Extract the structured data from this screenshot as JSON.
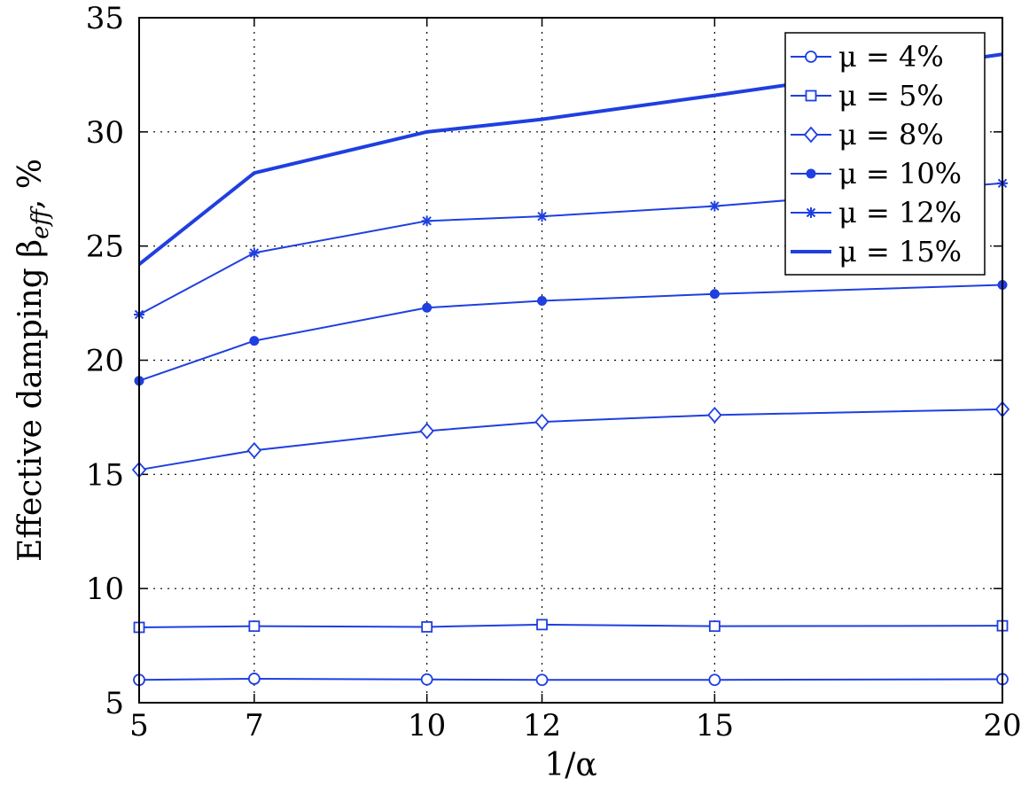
{
  "chart_data": {
    "type": "line",
    "x_tick_labels": [
      "5",
      "7",
      "10",
      "12",
      "15",
      "20"
    ],
    "y_tick_labels": [
      "5",
      "10",
      "15",
      "20",
      "25",
      "30",
      "35"
    ],
    "x": [
      5,
      7,
      10,
      12,
      15,
      20
    ],
    "xlabel": "1/α",
    "ylabel": "Effective damping β",
    "ylabel_subscript": "eff",
    "ylabel_suffix": ", %",
    "xlim": [
      5,
      20
    ],
    "ylim": [
      5,
      35
    ],
    "x_ticks": [
      5,
      7,
      10,
      12,
      15,
      20
    ],
    "y_ticks": [
      5,
      10,
      15,
      20,
      25,
      30,
      35
    ],
    "grid": true,
    "legend_position": "top-right",
    "series_color": "#1f3fe0",
    "series": [
      {
        "name": "μ = 4%",
        "marker": "circle",
        "values": [
          6.0,
          6.05,
          6.02,
          6.0,
          6.0,
          6.03
        ]
      },
      {
        "name": "μ = 5%",
        "marker": "square",
        "values": [
          8.3,
          8.35,
          8.32,
          8.42,
          8.35,
          8.37
        ]
      },
      {
        "name": "μ = 8%",
        "marker": "diamond",
        "values": [
          15.2,
          16.05,
          16.9,
          17.3,
          17.6,
          17.85
        ]
      },
      {
        "name": "μ = 10%",
        "marker": "dot",
        "values": [
          19.1,
          20.85,
          22.3,
          22.6,
          22.9,
          23.3
        ]
      },
      {
        "name": "μ = 12%",
        "marker": "star",
        "values": [
          22.0,
          24.7,
          26.1,
          26.3,
          26.75,
          27.75
        ]
      },
      {
        "name": "μ = 15%",
        "marker": "none",
        "values": [
          24.2,
          28.2,
          30.0,
          30.55,
          31.6,
          33.4
        ]
      }
    ]
  }
}
